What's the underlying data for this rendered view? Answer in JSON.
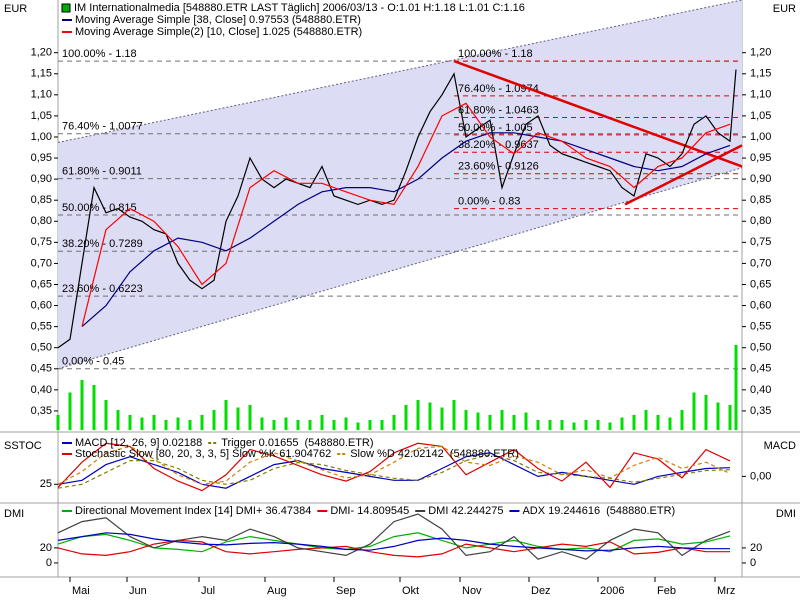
{
  "chart_data": [
    {
      "type": "line",
      "title": "IM Internationalmedia [548880.ETR LAST Täglich] 2006/03/13 - O:1.01 H:1.18 L:1.01 C:1.16",
      "y_label": "EUR",
      "y2_label": "EUR",
      "xlim": [
        0,
        228
      ],
      "xticks": [
        {
          "value": 4,
          "label": "Mai"
        },
        {
          "value": 23,
          "label": "Jun"
        },
        {
          "value": 47,
          "label": "Jul"
        },
        {
          "value": 69,
          "label": "Aug"
        },
        {
          "value": 92,
          "label": "Sep"
        },
        {
          "value": 114,
          "label": "Okt"
        },
        {
          "value": 134,
          "label": "Nov"
        },
        {
          "value": 157,
          "label": "Dez"
        },
        {
          "value": 180,
          "label": "2006"
        },
        {
          "value": 199,
          "label": "Feb"
        },
        {
          "value": 219,
          "label": "Mrz"
        }
      ],
      "ylim": [
        0.3,
        1.325
      ],
      "yticks": [
        {
          "value": 0.35,
          "label": "0,35"
        },
        {
          "value": 0.4,
          "label": "0,40"
        },
        {
          "value": 0.45,
          "label": "0,45"
        },
        {
          "value": 0.5,
          "label": "0,50"
        },
        {
          "value": 0.55,
          "label": "0,55"
        },
        {
          "value": 0.6,
          "label": "0,60"
        },
        {
          "value": 0.65,
          "label": "0,65"
        },
        {
          "value": 0.7,
          "label": "0,70"
        },
        {
          "value": 0.75,
          "label": "0,75"
        },
        {
          "value": 0.8,
          "label": "0,80"
        },
        {
          "value": 0.85,
          "label": "0,85"
        },
        {
          "value": 0.9,
          "label": "0,90"
        },
        {
          "value": 0.95,
          "label": "0,95"
        },
        {
          "value": 1.0,
          "label": "1,00"
        },
        {
          "value": 1.05,
          "label": "1,05"
        },
        {
          "value": 1.1,
          "label": "1,10"
        },
        {
          "value": 1.15,
          "label": "1,15"
        },
        {
          "value": 1.2,
          "label": "1,20"
        }
      ],
      "channel": {
        "x": [
          0,
          228
        ],
        "lower": [
          0.45,
          0.927
        ],
        "upper": [
          0.987,
          1.325
        ],
        "color": "#dcdcf5"
      },
      "trendlines": {
        "color": "#e00000",
        "lines": [
          {
            "x": [
              132,
              228
            ],
            "y": [
              1.18,
              0.93
            ]
          },
          {
            "x": [
              189,
              228
            ],
            "y": [
              0.84,
              0.98
            ]
          }
        ]
      },
      "fibonacci": [
        {
          "x_start": 0,
          "color": "#707070",
          "levels": [
            {
              "value": 1.18,
              "label": "100.00% - 1.18"
            },
            {
              "value": 1.0077,
              "label": "76.40% - 1.0077"
            },
            {
              "value": 0.9011,
              "label": "61.80% - 0.9011"
            },
            {
              "value": 0.815,
              "label": "50.00% - 0.815"
            },
            {
              "value": 0.7289,
              "label": "38.20% - 0.7289"
            },
            {
              "value": 0.6223,
              "label": "23.60% - 0.6223"
            },
            {
              "value": 0.45,
              "label": "0.00% - 0.45"
            }
          ]
        },
        {
          "x_start": 132,
          "color": "#e00000",
          "levels": [
            {
              "value": 1.18,
              "label": "100.00% - 1.18"
            },
            {
              "value": 1.0974,
              "label": "76.40% - 1.0974"
            },
            {
              "value": 1.0463,
              "label": "61.80% - 1.0463"
            },
            {
              "value": 1.005,
              "label": "50.00% - 1.005"
            },
            {
              "value": 0.9637,
              "label": "38.20% - 0.9637"
            },
            {
              "value": 0.9126,
              "label": "23.60% - 0.9126"
            },
            {
              "value": 0.83,
              "label": "0.00% - 0.83"
            }
          ]
        }
      ],
      "series": [
        {
          "color": "#000000",
          "x": [
            0,
            4,
            8,
            12,
            16,
            20,
            24,
            28,
            32,
            36,
            40,
            44,
            48,
            52,
            56,
            60,
            64,
            68,
            72,
            76,
            80,
            84,
            88,
            92,
            96,
            100,
            104,
            108,
            112,
            116,
            120,
            124,
            128,
            132,
            136,
            140,
            144,
            148,
            152,
            156,
            160,
            164,
            168,
            172,
            176,
            180,
            184,
            188,
            192,
            196,
            200,
            204,
            208,
            212,
            216,
            220,
            224,
            226
          ],
          "values": [
            0.5,
            0.52,
            0.7,
            0.88,
            0.82,
            0.83,
            0.81,
            0.8,
            0.78,
            0.77,
            0.7,
            0.66,
            0.64,
            0.66,
            0.8,
            0.86,
            0.95,
            0.9,
            0.88,
            0.9,
            0.89,
            0.88,
            0.93,
            0.86,
            0.85,
            0.84,
            0.85,
            0.84,
            0.85,
            0.92,
            1.0,
            1.06,
            1.1,
            1.15,
            1.0,
            1.02,
            1.04,
            0.88,
            0.96,
            1.03,
            1.05,
            0.98,
            0.96,
            0.95,
            0.94,
            0.93,
            0.92,
            0.88,
            0.86,
            0.96,
            0.95,
            0.93,
            0.96,
            1.03,
            1.05,
            1.01,
            0.99,
            1.16
          ]
        },
        {
          "name": "Moving Average Simple [38, Close] 0.97553 (548880.ETR)",
          "color": "#000080",
          "x": [
            8,
            16,
            24,
            32,
            40,
            48,
            56,
            64,
            72,
            80,
            88,
            96,
            104,
            112,
            120,
            128,
            136,
            144,
            152,
            160,
            168,
            176,
            184,
            192,
            200,
            208,
            216,
            224
          ],
          "values": [
            0.55,
            0.6,
            0.68,
            0.73,
            0.76,
            0.75,
            0.73,
            0.76,
            0.8,
            0.84,
            0.87,
            0.88,
            0.88,
            0.87,
            0.9,
            0.95,
            0.99,
            1.01,
            1.01,
            1.0,
            0.99,
            0.97,
            0.95,
            0.93,
            0.92,
            0.93,
            0.96,
            0.98
          ]
        },
        {
          "name": "Moving Average Simple(2) [10, Close] 1.025 (548880.ETR)",
          "color": "#ff0000",
          "x": [
            8,
            16,
            24,
            32,
            40,
            48,
            56,
            64,
            72,
            80,
            88,
            96,
            104,
            112,
            120,
            128,
            136,
            144,
            152,
            160,
            168,
            176,
            184,
            192,
            200,
            208,
            216,
            224
          ],
          "values": [
            0.55,
            0.78,
            0.83,
            0.8,
            0.74,
            0.65,
            0.7,
            0.88,
            0.92,
            0.89,
            0.89,
            0.87,
            0.85,
            0.84,
            0.93,
            1.05,
            1.08,
            1.0,
            0.96,
            1.01,
            0.99,
            0.95,
            0.93,
            0.88,
            0.93,
            0.95,
            1.01,
            1.03
          ]
        }
      ]
    },
    {
      "type": "bar",
      "color": "#00dd00",
      "ylim": [
        0,
        400
      ],
      "x": [
        0,
        4,
        8,
        12,
        16,
        20,
        24,
        28,
        32,
        36,
        40,
        44,
        48,
        52,
        56,
        60,
        64,
        68,
        72,
        76,
        80,
        84,
        88,
        92,
        96,
        100,
        104,
        108,
        112,
        116,
        120,
        124,
        128,
        132,
        136,
        140,
        144,
        148,
        152,
        156,
        160,
        164,
        168,
        172,
        176,
        180,
        184,
        188,
        192,
        196,
        200,
        204,
        208,
        212,
        216,
        220,
        224,
        226
      ],
      "values": [
        60,
        150,
        200,
        180,
        120,
        80,
        60,
        50,
        60,
        40,
        50,
        40,
        60,
        80,
        120,
        90,
        100,
        50,
        40,
        50,
        40,
        40,
        60,
        40,
        50,
        30,
        40,
        40,
        60,
        100,
        120,
        110,
        90,
        120,
        80,
        70,
        60,
        80,
        60,
        70,
        40,
        40,
        40,
        30,
        40,
        40,
        30,
        50,
        60,
        80,
        60,
        50,
        80,
        150,
        140,
        110,
        100,
        340
      ]
    },
    {
      "type": "line",
      "y_label": "SSTOC",
      "y2_label": "MACD",
      "source": "(548880.ETR)",
      "xlim": [
        0,
        228
      ],
      "x": [
        0,
        8,
        16,
        24,
        32,
        40,
        48,
        56,
        64,
        72,
        80,
        88,
        96,
        104,
        112,
        120,
        128,
        136,
        144,
        152,
        160,
        168,
        176,
        184,
        192,
        200,
        208,
        216,
        224
      ],
      "ylim": [
        0,
        100
      ],
      "yticks": [
        25
      ],
      "y2lim": [
        -0.06,
        0.1
      ],
      "y2ticks": [
        {
          "value": 0,
          "label": "0,00"
        }
      ],
      "series": [
        {
          "name": "MACD [12, 26, 9] 0.02188",
          "color": "#0000c0",
          "axis": "y2",
          "values": [
            -0.02,
            -0.01,
            0.03,
            0.05,
            0.03,
            0.01,
            -0.02,
            -0.03,
            0.0,
            0.03,
            0.04,
            0.02,
            0.01,
            0.0,
            -0.01,
            -0.01,
            0.02,
            0.05,
            0.06,
            0.03,
            0.0,
            0.01,
            0.0,
            -0.01,
            -0.02,
            0.0,
            0.01,
            0.02,
            0.022
          ]
        },
        {
          "name": "Trigger 0.01655",
          "color": "#808000",
          "axis": "y2",
          "style": "dashed",
          "values": [
            -0.03,
            -0.02,
            0.01,
            0.04,
            0.04,
            0.02,
            -0.01,
            -0.02,
            -0.01,
            0.02,
            0.035,
            0.03,
            0.015,
            0.005,
            -0.005,
            -0.01,
            0.01,
            0.04,
            0.055,
            0.04,
            0.01,
            0.005,
            0.0,
            -0.005,
            -0.015,
            -0.005,
            0.005,
            0.015,
            0.017
          ]
        },
        {
          "name": "Stochastic Slow [80, 20, 3, 3, 5] Slow %K 61.904762",
          "color": "#e00000",
          "values": [
            20,
            60,
            90,
            85,
            50,
            30,
            15,
            40,
            80,
            70,
            55,
            40,
            30,
            45,
            75,
            90,
            85,
            40,
            60,
            80,
            50,
            30,
            60,
            20,
            75,
            65,
            35,
            80,
            62
          ]
        },
        {
          "name": "Slow %D 42.02142",
          "color": "#d08000",
          "style": "dashed",
          "values": [
            25,
            45,
            75,
            85,
            65,
            40,
            25,
            30,
            60,
            75,
            62,
            48,
            35,
            40,
            60,
            82,
            85,
            60,
            55,
            70,
            60,
            40,
            48,
            35,
            55,
            68,
            50,
            60,
            42
          ]
        }
      ]
    },
    {
      "type": "line",
      "y_label": "DMI",
      "y2_label": "DMI",
      "source": "(548880.ETR)",
      "xlim": [
        0,
        228
      ],
      "x": [
        0,
        8,
        16,
        24,
        32,
        40,
        48,
        56,
        64,
        72,
        80,
        88,
        96,
        104,
        112,
        120,
        128,
        136,
        144,
        152,
        160,
        168,
        176,
        184,
        192,
        200,
        208,
        216,
        224
      ],
      "ylim": [
        -16,
        77
      ],
      "yticks": [
        20,
        0
      ],
      "y2ticks": [
        20,
        0
      ],
      "series": [
        {
          "name": "Directional Movement Index [14] DMI+ 36.47384",
          "color": "#00b000",
          "values": [
            25,
            35,
            38,
            30,
            20,
            18,
            15,
            28,
            35,
            30,
            25,
            20,
            18,
            22,
            35,
            40,
            30,
            20,
            25,
            30,
            22,
            18,
            20,
            15,
            30,
            32,
            25,
            28,
            36
          ]
        },
        {
          "name": "DMI- 14.809545",
          "color": "#e00000",
          "values": [
            20,
            12,
            10,
            15,
            25,
            30,
            28,
            15,
            12,
            15,
            18,
            20,
            22,
            15,
            10,
            8,
            12,
            25,
            20,
            15,
            20,
            25,
            22,
            28,
            12,
            14,
            20,
            15,
            15
          ]
        },
        {
          "name": "DMI 42.244275",
          "color": "#404040",
          "values": [
            40,
            55,
            60,
            35,
            20,
            30,
            35,
            30,
            45,
            35,
            20,
            15,
            10,
            25,
            55,
            65,
            45,
            10,
            15,
            35,
            5,
            15,
            5,
            30,
            45,
            40,
            10,
            30,
            42
          ]
        },
        {
          "name": "ADX 19.244616",
          "color": "#0000c0",
          "values": [
            30,
            35,
            40,
            38,
            32,
            28,
            25,
            24,
            26,
            27,
            25,
            22,
            18,
            17,
            22,
            30,
            33,
            30,
            25,
            22,
            20,
            18,
            16,
            17,
            20,
            22,
            20,
            19,
            19
          ]
        }
      ]
    }
  ]
}
